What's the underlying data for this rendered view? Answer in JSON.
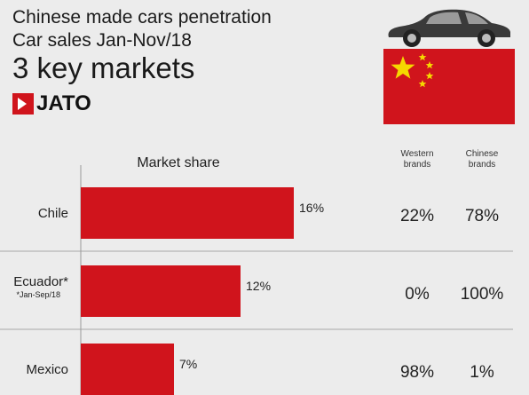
{
  "header": {
    "title_line1": "Chinese made cars penetration",
    "title_line2": "Car sales Jan-Nov/18",
    "title_line3": "3 key markets",
    "logo_text": "JATO",
    "logo_icon": "jato-logo-icon",
    "car_icon": "car-icon",
    "flag_icon": "china-flag-icon"
  },
  "colors": {
    "bar": "#d0141c",
    "flag_red": "#d0141c",
    "flag_star": "#f5d800",
    "car": "#3a3a3a"
  },
  "columns": {
    "western_line1": "Western",
    "western_line2": "brands",
    "chinese_line1": "Chinese",
    "chinese_line2": "brands"
  },
  "chart_data": {
    "type": "bar",
    "orientation": "horizontal",
    "title": "Market share",
    "categories": [
      "Chile",
      "Ecuador*",
      "Mexico"
    ],
    "category_notes": [
      "",
      "*Jan-Sep/18",
      ""
    ],
    "values": [
      16,
      12,
      7
    ],
    "value_labels": [
      "16%",
      "12%",
      "7%"
    ],
    "unit": "%",
    "xlim": [
      0,
      22
    ],
    "grid": false,
    "brand_split": {
      "western": [
        "22%",
        "0%",
        "98%"
      ],
      "chinese": [
        "78%",
        "100%",
        "1%"
      ]
    }
  }
}
